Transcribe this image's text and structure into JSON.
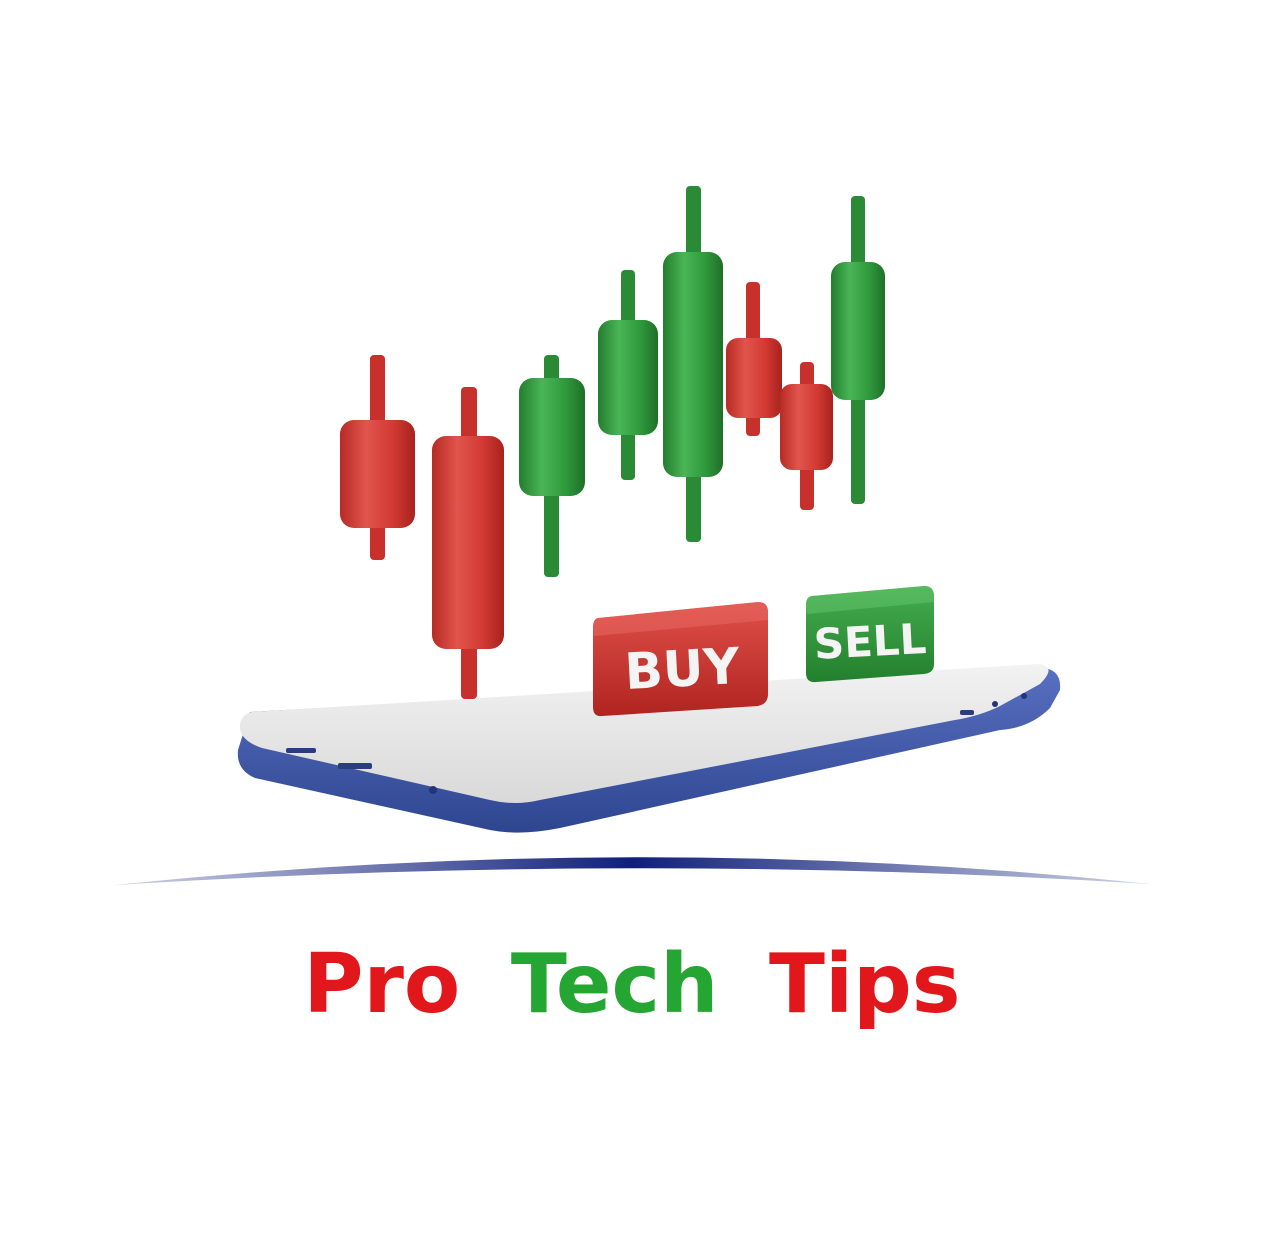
{
  "brand": {
    "words": [
      {
        "text": "Pro",
        "color": "#e2171c"
      },
      {
        "text": "Tech",
        "color": "#25a532"
      },
      {
        "text": "Tips",
        "color": "#e2171c"
      }
    ]
  },
  "buttons": {
    "buy_label": "BUY",
    "sell_label": "SELL"
  },
  "colors": {
    "bullish": "#2f9a3c",
    "bearish": "#d23a33",
    "phone_body": "#3c56a8",
    "phone_screen": "#e6e6e6",
    "swoosh": "#0f1f7a"
  },
  "icons": {
    "chart": "candlestick-chart-icon",
    "device": "smartphone-icon"
  }
}
